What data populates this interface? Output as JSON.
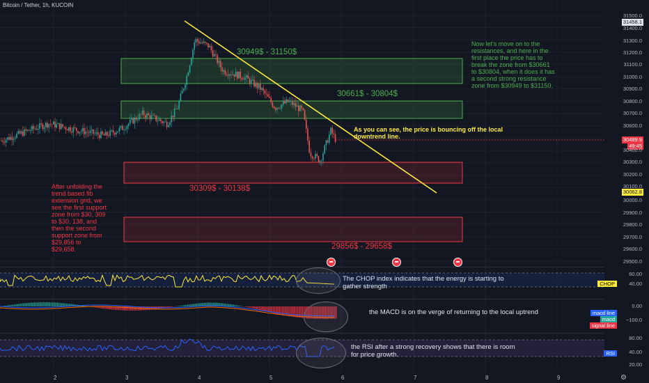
{
  "header": {
    "symbol": "Bitcoin / Tether, 1h, KUCOIN"
  },
  "price_axis": {
    "labels": [
      "31500.0",
      "31400.0",
      "31300.0",
      "31200.0",
      "31100.0",
      "31000.0",
      "30900.0",
      "30800.0",
      "30700.0",
      "30600.0",
      "30400.0",
      "30300.0",
      "30200.0",
      "30100.0",
      "30000.0",
      "29900.0",
      "29800.0",
      "29700.0",
      "29600.0",
      "29500.0"
    ],
    "top_price_tag": "31458.1",
    "current_price": "30489.9",
    "countdown": "49:45",
    "low_price_tag": "30062.8"
  },
  "time_axis": {
    "labels": [
      "2",
      "3",
      "4",
      "5",
      "6",
      "7",
      "8",
      "9"
    ]
  },
  "zones": {
    "r2_label": "30949$ - 31150$",
    "r1_label": "30661$ - 30804$",
    "s1_label": "30309$ - 30138$",
    "s2_label": "29856$ - 29658$"
  },
  "annotations": {
    "resistance_note": "Now let's move on to the resistances, and here in the first place the price has to break the zone from $30661 to $30804, when it does it has a second strong resistance zone from $30949 to $31150.",
    "support_note": "After unfolding the trend based fib extension grid, we see the first support zone from $30, 309 to $30, 138, and then the second support zone from $29,856 to $29,658.",
    "downtrend_note": "As you can see, the price is bouncing off the local downtrend line."
  },
  "chop_pane": {
    "note": "The CHOP index indicates that the energy is starting to gather strength",
    "axis": [
      "60.00",
      "40.00"
    ],
    "tag": "CHOP"
  },
  "macd_pane": {
    "note": "the MACD is on the verge of returning to the local uptrend",
    "axis": [
      "0.00",
      "−100.0"
    ],
    "legend": [
      "macd line",
      "macd",
      "signal line"
    ]
  },
  "rsi_pane": {
    "note": "the RSI after a strong recovery shows that there is room for price growth.",
    "axis": [
      "80.00",
      "40.00",
      "20.00"
    ],
    "tag": "RSI"
  },
  "colors": {
    "background": "#131722",
    "up_candle": "#26a69a",
    "down_candle": "#ef5350",
    "resistance": "#4caf50",
    "support": "#f23645",
    "trendline": "#ffeb3b",
    "chop": "#ffeb3b",
    "rsi": "#2962ff"
  }
}
